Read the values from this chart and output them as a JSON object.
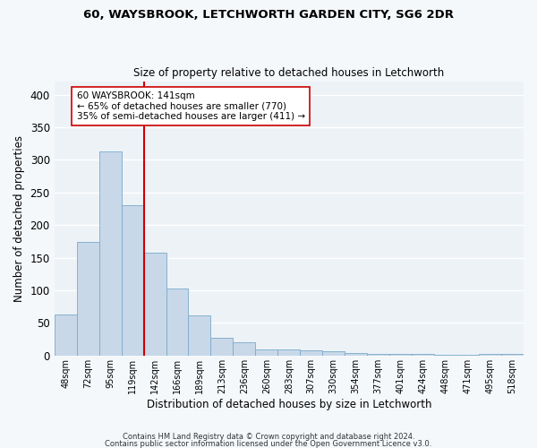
{
  "title": "60, WAYSBROOK, LETCHWORTH GARDEN CITY, SG6 2DR",
  "subtitle": "Size of property relative to detached houses in Letchworth",
  "xlabel": "Distribution of detached houses by size in Letchworth",
  "ylabel": "Number of detached properties",
  "bar_color": "#c8d8e8",
  "bar_edge_color": "#7aaaca",
  "background_color": "#edf2f7",
  "fig_background_color": "#f5f8fb",
  "grid_color": "#ffffff",
  "categories": [
    "48sqm",
    "72sqm",
    "95sqm",
    "119sqm",
    "142sqm",
    "166sqm",
    "189sqm",
    "213sqm",
    "236sqm",
    "260sqm",
    "283sqm",
    "307sqm",
    "330sqm",
    "354sqm",
    "377sqm",
    "401sqm",
    "424sqm",
    "448sqm",
    "471sqm",
    "495sqm",
    "518sqm"
  ],
  "values": [
    63,
    174,
    313,
    230,
    158,
    103,
    62,
    27,
    21,
    9,
    10,
    8,
    6,
    4,
    3,
    2,
    2,
    1,
    1,
    3,
    3
  ],
  "vline_color": "#cc0000",
  "vline_x_index": 3.5,
  "annotation_text": "60 WAYSBROOK: 141sqm\n← 65% of detached houses are smaller (770)\n35% of semi-detached houses are larger (411) →",
  "annotation_box_color": "#ffffff",
  "annotation_box_edge": "#cc0000",
  "ylim": [
    0,
    420
  ],
  "yticks": [
    0,
    50,
    100,
    150,
    200,
    250,
    300,
    350,
    400
  ],
  "footer1": "Contains HM Land Registry data © Crown copyright and database right 2024.",
  "footer2": "Contains public sector information licensed under the Open Government Licence v3.0."
}
